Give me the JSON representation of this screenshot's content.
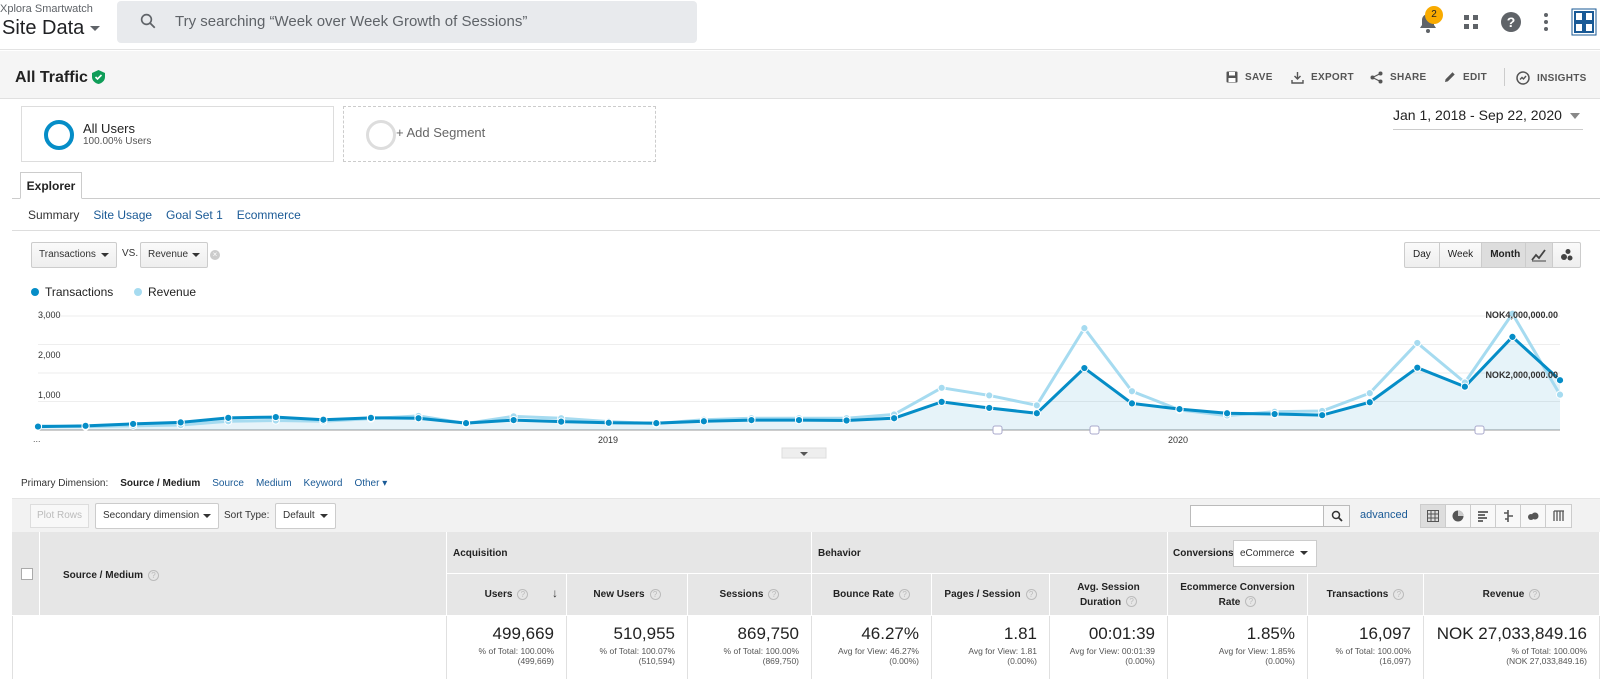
{
  "account": {
    "name": "Xplora Smartwatch",
    "property": "Site Data"
  },
  "search": {
    "placeholder": "Try searching “Week over Week Growth of Sessions”"
  },
  "notifications": {
    "count": "2"
  },
  "report": {
    "title": "All Traffic",
    "actions": [
      "SAVE",
      "EXPORT",
      "SHARE",
      "EDIT",
      "INSIGHTS"
    ]
  },
  "segments": {
    "active": {
      "name": "All Users",
      "sub": "100.00% Users"
    },
    "add_label": "+ Add Segment"
  },
  "date_range": "Jan 1, 2018 - Sep 22, 2020",
  "tabs": {
    "explorer": "Explorer",
    "subtabs": [
      "Summary",
      "Site Usage",
      "Goal Set 1",
      "Ecommerce"
    ]
  },
  "chart_controls": {
    "metric1": "Transactions",
    "vs": "VS.",
    "metric2": "Revenue",
    "granularity": [
      "Day",
      "Week",
      "Month"
    ],
    "selected_granularity": "Month"
  },
  "colors": {
    "transactions": "#058dc7",
    "revenue": "#a6dbf0"
  },
  "chart_data": {
    "type": "line",
    "legend": [
      "Transactions",
      "Revenue"
    ],
    "y_ticks": [
      "3,000",
      "2,000",
      "1,000"
    ],
    "y2_ticks": [
      "NOK4,000,000.00",
      "NOK2,000,000.00"
    ],
    "x_labels": [
      "...",
      "2019",
      "2020"
    ],
    "ylim": [
      0,
      3000
    ],
    "series": [
      {
        "name": "Transactions",
        "values": [
          90,
          110,
          160,
          200,
          320,
          340,
          270,
          320,
          310,
          180,
          260,
          220,
          190,
          180,
          230,
          260,
          260,
          250,
          310,
          740,
          580,
          440,
          1630,
          700,
          550,
          440,
          420,
          390,
          730,
          1640,
          1140,
          2450,
          1310
        ]
      },
      {
        "name": "Revenue",
        "values": [
          110,
          90,
          110,
          130,
          230,
          250,
          230,
          300,
          370,
          170,
          360,
          310,
          220,
          170,
          270,
          310,
          310,
          310,
          410,
          1110,
          910,
          650,
          2680,
          1020,
          530,
          380,
          480,
          500,
          970,
          2290,
          1250,
          3060,
          930
        ]
      }
    ]
  },
  "table_controls": {
    "primary_label": "Primary Dimension:",
    "primary_current": "Source / Medium",
    "primary_links": [
      "Source",
      "Medium",
      "Keyword",
      "Other"
    ],
    "plot_rows": "Plot Rows",
    "secondary": "Secondary dimension",
    "sort_label": "Sort Type:",
    "sort_value": "Default",
    "advanced": "advanced"
  },
  "table": {
    "dimension_header": "Source / Medium",
    "groups": [
      "Acquisition",
      "Behavior",
      "Conversions"
    ],
    "conversion_select": "eCommerce",
    "columns": [
      "Users",
      "New Users",
      "Sessions",
      "Bounce Rate",
      "Pages / Session",
      "Avg. Session Duration",
      "Ecommerce Conversion Rate",
      "Transactions",
      "Revenue"
    ],
    "totals": [
      {
        "value": "499,669",
        "l1": "% of Total: 100.00%",
        "l2": "(499,669)"
      },
      {
        "value": "510,955",
        "l1": "% of Total: 100.07%",
        "l2": "(510,594)"
      },
      {
        "value": "869,750",
        "l1": "% of Total: 100.00%",
        "l2": "(869,750)"
      },
      {
        "value": "46.27%",
        "l1": "Avg for View: 46.27%",
        "l2": "(0.00%)"
      },
      {
        "value": "1.81",
        "l1": "Avg for View: 1.81",
        "l2": "(0.00%)"
      },
      {
        "value": "00:01:39",
        "l1": "Avg for View: 00:01:39",
        "l2": "(0.00%)"
      },
      {
        "value": "1.85%",
        "l1": "Avg for View: 1.85%",
        "l2": "(0.00%)"
      },
      {
        "value": "16,097",
        "l1": "% of Total: 100.00%",
        "l2": "(16,097)"
      },
      {
        "value": "NOK 27,033,849.16",
        "l1": "% of Total: 100.00%",
        "l2": "(NOK 27,033,849.16)"
      }
    ]
  }
}
